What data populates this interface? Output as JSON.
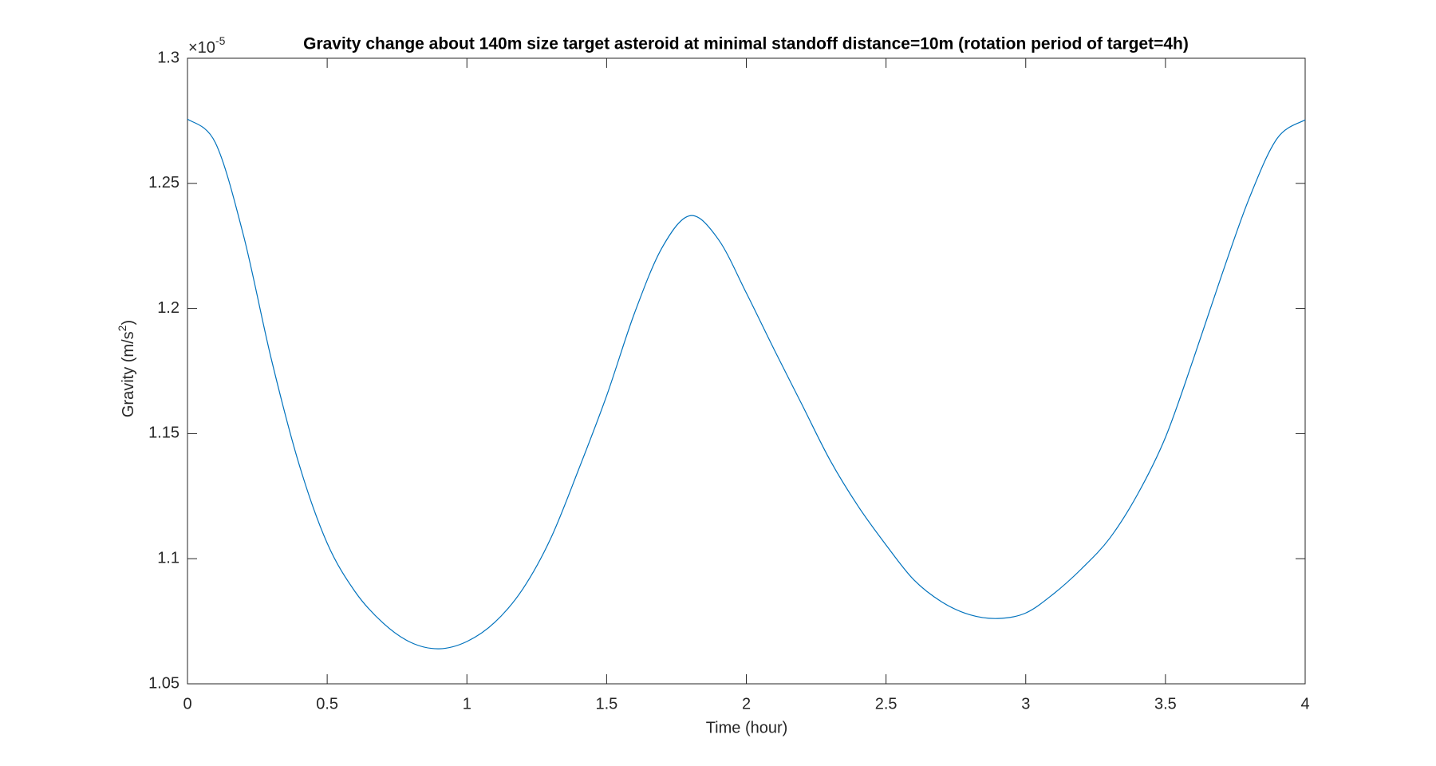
{
  "chart_data": {
    "type": "line",
    "title": "Gravity change about 140m size target asteroid at minimal standoff distance=10m (rotation period of target=4h)",
    "xlabel": "Time (hour)",
    "ylabel": {
      "text": "Gravity (m/s",
      "sup": "2",
      "close": ")"
    },
    "y_multiplier": {
      "base": "×10",
      "exponent": "-5"
    },
    "x": [
      0,
      0.1,
      0.2,
      0.3,
      0.4,
      0.5,
      0.6,
      0.7,
      0.8,
      0.9,
      1.0,
      1.1,
      1.2,
      1.3,
      1.4,
      1.5,
      1.6,
      1.7,
      1.8,
      1.9,
      2.0,
      2.1,
      2.2,
      2.3,
      2.4,
      2.5,
      2.6,
      2.7,
      2.8,
      2.9,
      3.0,
      3.1,
      3.2,
      3.3,
      3.4,
      3.5,
      3.6,
      3.7,
      3.8,
      3.9,
      4.0
    ],
    "series": [
      {
        "color": "#0072bd",
        "values": [
          1.2757,
          1.2662,
          1.2294,
          1.1798,
          1.1375,
          1.1062,
          1.0868,
          1.0743,
          1.0665,
          1.064,
          1.0669,
          1.0746,
          1.0879,
          1.1081,
          1.1357,
          1.1651,
          1.1982,
          1.2246,
          1.2371,
          1.2276,
          1.2062,
          1.1835,
          1.1614,
          1.1393,
          1.121,
          1.1055,
          1.0915,
          1.0827,
          1.0776,
          1.0761,
          1.0783,
          1.086,
          1.096,
          1.1081,
          1.1257,
          1.1485,
          1.1798,
          1.2129,
          1.2441,
          1.268,
          1.2754
        ]
      }
    ],
    "xlim": [
      0,
      4
    ],
    "xticks": [
      0,
      0.5,
      1,
      1.5,
      2,
      2.5,
      3,
      3.5,
      4
    ],
    "ylim": [
      1.05,
      1.3
    ],
    "yticks": [
      1.05,
      1.1,
      1.15,
      1.2,
      1.25,
      1.3
    ],
    "grid": false
  }
}
